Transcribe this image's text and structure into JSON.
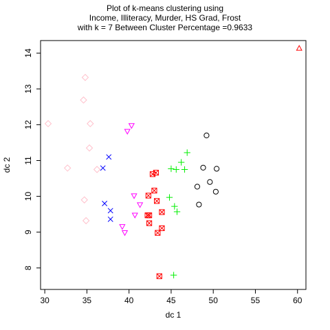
{
  "chart_data": {
    "type": "scatter",
    "title_lines": [
      "Plot of k-means clustering using",
      "Income, Illiteracy, Murder, HS Grad, Frost",
      "with  k = 7 Between Cluster Percentage =0.9633"
    ],
    "xlabel": "dc 1",
    "ylabel": "dc 2",
    "xlim": [
      29.5,
      61.0
    ],
    "ylim": [
      7.4,
      14.35
    ],
    "xticks": [
      30,
      35,
      40,
      45,
      50,
      55,
      60
    ],
    "yticks": [
      8,
      9,
      10,
      11,
      12,
      13,
      14
    ],
    "grid": false,
    "series": [
      {
        "color": "#000000",
        "marker": "circle",
        "points": [
          [
            49.2,
            11.7
          ],
          [
            48.8,
            10.8
          ],
          [
            50.4,
            10.77
          ],
          [
            49.6,
            10.4
          ],
          [
            48.1,
            10.27
          ],
          [
            50.3,
            10.13
          ],
          [
            48.3,
            9.77
          ]
        ]
      },
      {
        "color": "#ff0000",
        "marker": "triangle-up",
        "points": [
          [
            60.2,
            14.13
          ]
        ]
      },
      {
        "color": "#00ee00",
        "marker": "plus",
        "points": [
          [
            46.9,
            11.22
          ],
          [
            46.2,
            10.95
          ],
          [
            45.0,
            10.77
          ],
          [
            45.6,
            10.75
          ],
          [
            46.6,
            10.75
          ],
          [
            44.8,
            9.97
          ],
          [
            45.4,
            9.72
          ],
          [
            45.7,
            9.57
          ],
          [
            45.3,
            7.8
          ]
        ]
      },
      {
        "color": "#0000ff",
        "marker": "x",
        "points": [
          [
            37.6,
            11.1
          ],
          [
            36.9,
            10.79
          ],
          [
            37.1,
            9.8
          ],
          [
            37.8,
            9.6
          ],
          [
            37.8,
            9.36
          ]
        ]
      },
      {
        "color": "#00e5ee",
        "marker": "diamond",
        "points": []
      },
      {
        "color": "#ff00ff",
        "marker": "triangle-down",
        "points": [
          [
            40.3,
            11.98
          ],
          [
            39.8,
            11.82
          ],
          [
            40.6,
            10.02
          ],
          [
            41.3,
            9.77
          ],
          [
            40.7,
            9.48
          ],
          [
            39.2,
            9.16
          ],
          [
            39.5,
            8.99
          ]
        ]
      },
      {
        "color": "#ff0000",
        "marker": "square-x",
        "points": [
          [
            43.2,
            10.66
          ],
          [
            42.8,
            10.62
          ],
          [
            43.0,
            10.16
          ],
          [
            42.3,
            10.02
          ],
          [
            43.3,
            9.87
          ],
          [
            42.2,
            9.47
          ],
          [
            42.4,
            9.47
          ],
          [
            43.9,
            9.56
          ],
          [
            42.4,
            9.25
          ],
          [
            43.9,
            9.11
          ],
          [
            43.4,
            8.98
          ],
          [
            43.6,
            7.77
          ]
        ]
      },
      {
        "color": "#ffc0cb",
        "marker": "diamond",
        "points": [
          [
            34.8,
            13.32
          ],
          [
            34.6,
            12.69
          ],
          [
            30.4,
            12.03
          ],
          [
            35.4,
            12.03
          ],
          [
            35.3,
            11.35
          ],
          [
            32.7,
            10.79
          ],
          [
            36.2,
            10.75
          ],
          [
            34.7,
            9.9
          ],
          [
            34.9,
            9.32
          ]
        ]
      }
    ]
  }
}
